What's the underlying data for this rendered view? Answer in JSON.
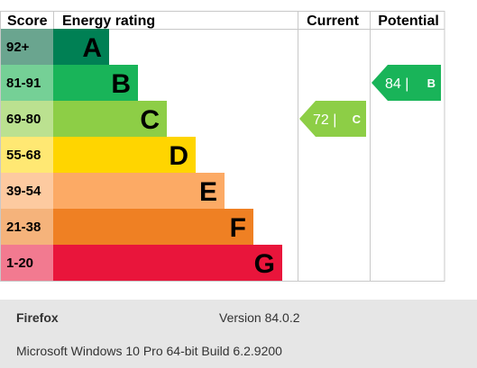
{
  "chart_data": {
    "type": "bar",
    "headers": {
      "score": "Score",
      "rating": "Energy rating",
      "current": "Current",
      "potential": "Potential"
    },
    "bands": [
      {
        "range": "92+",
        "letter": "A",
        "color": "#008054",
        "letter_color": "#000000",
        "score_bg": "#6aa58f",
        "extent": 1
      },
      {
        "range": "81-91",
        "letter": "B",
        "color": "#19b459",
        "letter_color": "#000000",
        "score_bg": "#75d096",
        "extent": 2
      },
      {
        "range": "69-80",
        "letter": "C",
        "color": "#8dce46",
        "letter_color": "#000000",
        "score_bg": "#bbe190",
        "extent": 3
      },
      {
        "range": "55-68",
        "letter": "D",
        "color": "#ffd500",
        "letter_color": "#000000",
        "score_bg": "#ffe873",
        "extent": 4
      },
      {
        "range": "39-54",
        "letter": "E",
        "color": "#fcaa65",
        "letter_color": "#000000",
        "score_bg": "#fdcaa0",
        "extent": 5
      },
      {
        "range": "21-38",
        "letter": "F",
        "color": "#ef8023",
        "letter_color": "#000000",
        "score_bg": "#f5b37b",
        "extent": 6
      },
      {
        "range": "1-20",
        "letter": "G",
        "color": "#e9153b",
        "letter_color": "#000000",
        "score_bg": "#f27a90",
        "extent": 7
      }
    ],
    "current": {
      "value": 72,
      "letter": "C",
      "text": "72 |",
      "color": "#8dce46"
    },
    "potential": {
      "value": 84,
      "letter": "B",
      "text": "84 |",
      "color": "#19b459"
    }
  },
  "footer": {
    "browser_name": "Firefox",
    "browser_version": "Version 84.0.2",
    "os_info": "Microsoft Windows 10 Pro 64-bit Build 6.2.9200"
  }
}
